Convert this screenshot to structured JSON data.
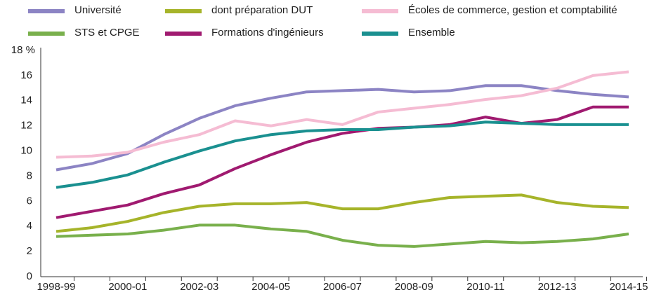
{
  "chart_data": {
    "type": "line",
    "categories": [
      "1998-99",
      null,
      "2000-01",
      null,
      "2002-03",
      null,
      "2004-05",
      null,
      "2006-07",
      null,
      "2008-09",
      null,
      "2010-11",
      null,
      "2012-13",
      null,
      "2014-15"
    ],
    "series": [
      {
        "name": "Université",
        "color": "#8c84c4",
        "values": [
          8.5,
          9.0,
          9.8,
          11.3,
          12.6,
          13.6,
          14.2,
          14.7,
          14.8,
          14.9,
          14.7,
          14.8,
          15.2,
          15.2,
          14.8,
          14.5,
          14.3
        ]
      },
      {
        "name": "dont préparation DUT",
        "color": "#a6b42a",
        "values": [
          3.6,
          3.9,
          4.4,
          5.1,
          5.6,
          5.8,
          5.8,
          5.9,
          5.4,
          5.4,
          5.9,
          6.3,
          6.4,
          6.5,
          5.9,
          5.6,
          5.5
        ]
      },
      {
        "name": "Écoles de commerce, gestion et comptabilité",
        "color": "#f5bcd3",
        "values": [
          9.5,
          9.6,
          9.9,
          10.7,
          11.3,
          12.4,
          12.0,
          12.5,
          12.1,
          13.1,
          13.4,
          13.7,
          14.1,
          14.4,
          15.0,
          16.0,
          16.3
        ]
      },
      {
        "name": "STS et CPGE",
        "color": "#79b04c",
        "values": [
          3.2,
          3.3,
          3.4,
          3.7,
          4.1,
          4.1,
          3.8,
          3.6,
          2.9,
          2.5,
          2.4,
          2.6,
          2.8,
          2.7,
          2.8,
          3.0,
          3.4
        ]
      },
      {
        "name": "Formations d'ingénieurs",
        "color": "#a01a70",
        "values": [
          4.7,
          5.2,
          5.7,
          6.6,
          7.3,
          8.6,
          9.7,
          10.7,
          11.4,
          11.8,
          11.9,
          12.1,
          12.7,
          12.2,
          12.5,
          13.5,
          13.5
        ]
      },
      {
        "name": "Ensemble",
        "color": "#1a9090",
        "values": [
          7.1,
          7.5,
          8.1,
          9.1,
          10.0,
          10.8,
          11.3,
          11.6,
          11.7,
          11.7,
          11.9,
          12.0,
          12.3,
          12.2,
          12.1,
          12.1,
          12.1
        ]
      }
    ],
    "ylim": [
      0,
      18
    ],
    "yticks": [
      0,
      2,
      4,
      6,
      8,
      10,
      12,
      14,
      16,
      {
        "value": 18,
        "label": "18 %"
      }
    ],
    "grid": false
  }
}
